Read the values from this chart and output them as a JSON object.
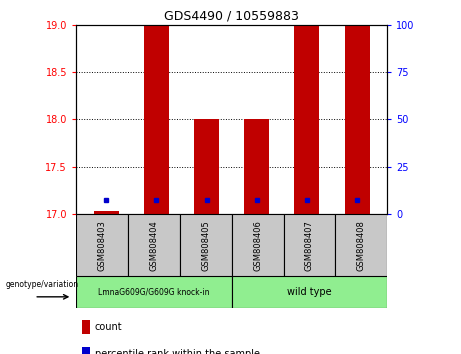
{
  "title": "GDS4490 / 10559883",
  "samples": [
    "GSM808403",
    "GSM808404",
    "GSM808405",
    "GSM808406",
    "GSM808407",
    "GSM808408"
  ],
  "red_bar_tops": [
    17.03,
    19.0,
    18.0,
    18.0,
    19.0,
    19.0
  ],
  "blue_dot_values": [
    17.15,
    17.15,
    17.15,
    17.15,
    17.15,
    17.15
  ],
  "bar_base": 17.0,
  "ylim_left": [
    17.0,
    19.0
  ],
  "ylim_right": [
    0,
    100
  ],
  "yticks_left": [
    17.0,
    17.5,
    18.0,
    18.5,
    19.0
  ],
  "yticks_right": [
    0,
    25,
    50,
    75,
    100
  ],
  "group1_label": "LmnaG609G/G609G knock-in",
  "group2_label": "wild type",
  "group1_indices": [
    0,
    1,
    2
  ],
  "group2_indices": [
    3,
    4,
    5
  ],
  "group1_color": "#90EE90",
  "group2_color": "#90EE90",
  "bar_color": "#c00000",
  "dot_color": "#0000cc",
  "bar_width": 0.5,
  "legend_count_label": "count",
  "legend_percentile_label": "percentile rank within the sample",
  "genotype_label": "genotype/variation",
  "background_group": "#c8c8c8"
}
